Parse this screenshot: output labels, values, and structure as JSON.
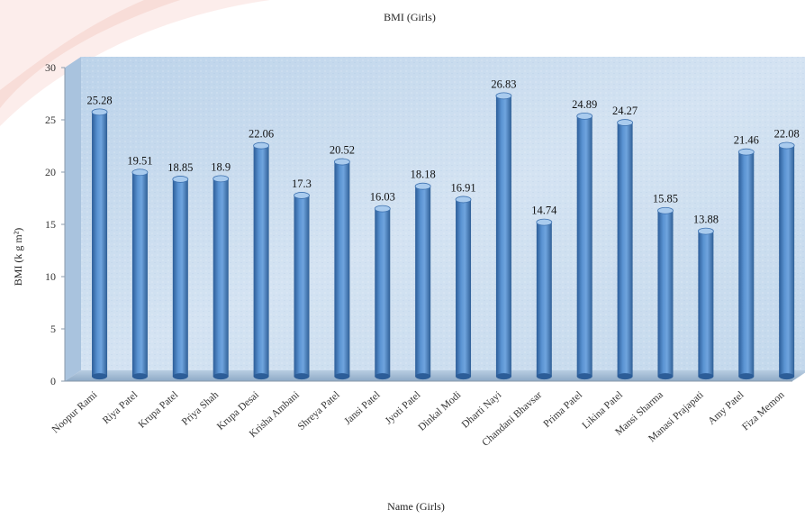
{
  "chart_data": {
    "type": "bar",
    "title": "BMI (Girls)",
    "xlabel": "Name (Girls)",
    "ylabel": "BMI (k g m²)",
    "ylim": [
      0,
      30
    ],
    "yticks": [
      "0",
      "5",
      "10",
      "15",
      "20",
      "25",
      "30"
    ],
    "grid": false,
    "legend": "none",
    "categories": [
      "Noopur Rami",
      "Riya Patel",
      "Krupa Patel",
      "Priya Shah",
      "Krupa Desai",
      "Krisha Ambani",
      "Shreya Patel",
      "Jansi Patel",
      "Jyoti Patel",
      "Dinkal Modi",
      "Dharti Nayi",
      "Chandani Bhavsar",
      "Prima Patel",
      "Likina Patel",
      "Mansi Sharma",
      "Manasi Prajapati",
      "Amy Patel",
      "Fiza Memon"
    ],
    "values": [
      25.28,
      19.51,
      18.85,
      18.9,
      22.06,
      17.3,
      20.52,
      16.03,
      18.18,
      16.91,
      26.83,
      14.74,
      24.89,
      24.27,
      15.85,
      13.88,
      21.46,
      22.08
    ],
    "value_labels": [
      "25.28",
      "19.51",
      "18.85",
      "18.9",
      "22.06",
      "17.3",
      "20.52",
      "16.03",
      "18.18",
      "16.91",
      "26.83",
      "14.74",
      "24.89",
      "24.27",
      "15.85",
      "13.88",
      "21.46",
      "22.08"
    ],
    "colors": {
      "bar": "#4f86c6",
      "bar_dark": "#2c5d98",
      "bar_light": "#a9cbee",
      "wall": "#c9dcef",
      "floor": "#9fb7cf"
    }
  }
}
